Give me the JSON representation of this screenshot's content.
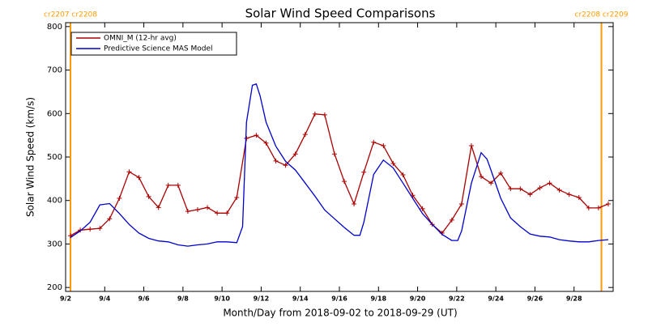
{
  "chart_data": {
    "type": "line",
    "title": "Solar Wind Speed Comparisons",
    "x_label": "Month/Day from 2018-09-02 to 2018-09-29 (UT)",
    "y_label": "Solar Wind Speed (km/s)",
    "xlim": [
      2,
      30
    ],
    "xticks": [
      {
        "value": 2,
        "label": "9/2"
      },
      {
        "value": 4,
        "label": "9/4"
      },
      {
        "value": 6,
        "label": "9/6"
      },
      {
        "value": 8,
        "label": "9/8"
      },
      {
        "value": 10,
        "label": "9/10"
      },
      {
        "value": 12,
        "label": "9/12"
      },
      {
        "value": 14,
        "label": "9/14"
      },
      {
        "value": 16,
        "label": "9/16"
      },
      {
        "value": 18,
        "label": "9/18"
      },
      {
        "value": 20,
        "label": "9/20"
      },
      {
        "value": 22,
        "label": "9/22"
      },
      {
        "value": 24,
        "label": "9/24"
      },
      {
        "value": 26,
        "label": "9/26"
      },
      {
        "value": 28,
        "label": "9/28"
      }
    ],
    "ylim": [
      191,
      809
    ],
    "yticks": [
      200,
      300,
      400,
      500,
      600,
      700,
      800
    ],
    "legend": "upper left",
    "annotations": [
      {
        "x": 2.25,
        "text": "cr2207 cr2208",
        "color": "#ff9900"
      },
      {
        "x": 29.4,
        "text": "cr2208 cr2209",
        "color": "#ff9900"
      }
    ],
    "series": [
      {
        "name": "OMNI_M (12-hr avg)",
        "color": "#aa0000",
        "marker": "+",
        "x": [
          2.25,
          2.75,
          3.25,
          3.75,
          4.25,
          4.75,
          5.25,
          5.75,
          6.25,
          6.75,
          7.25,
          7.75,
          8.25,
          8.75,
          9.25,
          9.75,
          10.25,
          10.75,
          11.25,
          11.75,
          12.25,
          12.75,
          13.25,
          13.75,
          14.25,
          14.75,
          15.25,
          15.75,
          16.25,
          16.75,
          17.25,
          17.75,
          18.25,
          18.75,
          19.25,
          19.75,
          20.25,
          20.75,
          21.25,
          21.75,
          22.25,
          22.75,
          23.25,
          23.75,
          24.25,
          24.75,
          25.25,
          25.75,
          26.25,
          26.75,
          27.25,
          27.75,
          28.25,
          28.75,
          29.25,
          29.75
        ],
        "values": [
          319,
          332,
          334,
          336,
          358,
          405,
          466,
          453,
          409,
          384,
          435,
          435,
          375,
          379,
          384,
          371,
          371,
          407,
          543,
          550,
          532,
          491,
          481,
          507,
          552,
          599,
          597,
          507,
          444,
          392,
          465,
          534,
          526,
          485,
          459,
          412,
          381,
          345,
          325,
          355,
          392,
          526,
          455,
          440,
          463,
          427,
          427,
          414,
          429,
          440,
          424,
          414,
          407,
          383,
          383,
          392
        ]
      },
      {
        "name": "Predictive Science MAS Model",
        "color": "#0000cc",
        "x": [
          2.25,
          2.75,
          3.25,
          3.75,
          4.25,
          4.75,
          5.25,
          5.75,
          6.25,
          6.75,
          7.25,
          7.75,
          8.25,
          8.75,
          9.25,
          9.75,
          10.25,
          10.75,
          11.05,
          11.25,
          11.55,
          11.75,
          11.95,
          12.25,
          12.75,
          13.25,
          13.75,
          14.25,
          14.75,
          15.25,
          15.75,
          16.25,
          16.75,
          17.05,
          17.25,
          17.75,
          18.25,
          18.75,
          19.25,
          19.75,
          20.25,
          20.75,
          21.25,
          21.75,
          22.05,
          22.25,
          22.75,
          23.25,
          23.55,
          23.75,
          24.25,
          24.75,
          25.25,
          25.75,
          26.25,
          26.75,
          27.25,
          27.75,
          28.25,
          28.75,
          29.25,
          29.75
        ],
        "values": [
          315,
          330,
          350,
          390,
          393,
          370,
          345,
          325,
          313,
          307,
          305,
          298,
          295,
          298,
          300,
          305,
          305,
          303,
          340,
          580,
          665,
          668,
          640,
          580,
          525,
          490,
          470,
          440,
          410,
          378,
          358,
          338,
          320,
          320,
          350,
          460,
          493,
          475,
          440,
          405,
          370,
          345,
          322,
          308,
          308,
          330,
          440,
          510,
          495,
          470,
          405,
          360,
          340,
          323,
          318,
          316,
          310,
          307,
          305,
          305,
          308,
          310
        ]
      }
    ]
  }
}
